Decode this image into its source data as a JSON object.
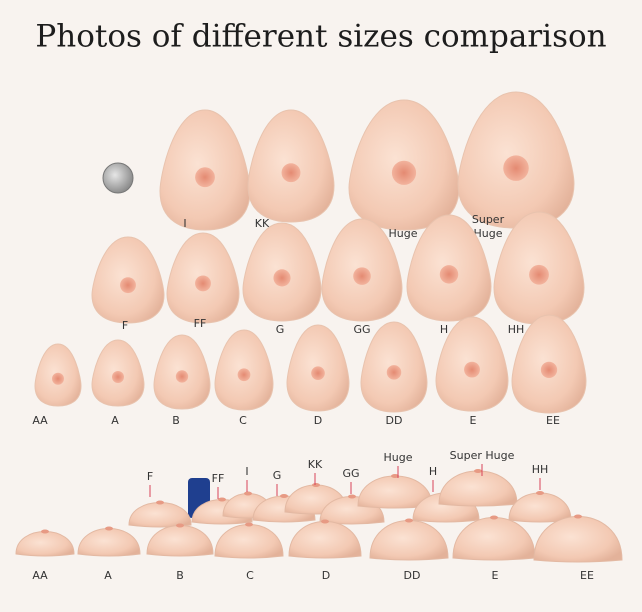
{
  "title": "Photos of different sizes comparison",
  "front_view": {
    "row1": [
      "I",
      "KK",
      "Huge",
      [
        "Super",
        "Huge"
      ]
    ],
    "row2": [
      "F",
      "FF",
      "G",
      "GG",
      "H",
      "HH"
    ],
    "row3": [
      "AA",
      "A",
      "B",
      "C",
      "D",
      "DD",
      "E",
      "EE"
    ]
  },
  "side_view": {
    "back_labels": [
      "F",
      "FF",
      "I",
      "G",
      "KK",
      "GG",
      "Huge",
      "H",
      "Super Huge",
      "HH"
    ],
    "front_labels": [
      "AA",
      "A",
      "B",
      "C",
      "D",
      "DD",
      "E",
      "EE"
    ]
  }
}
